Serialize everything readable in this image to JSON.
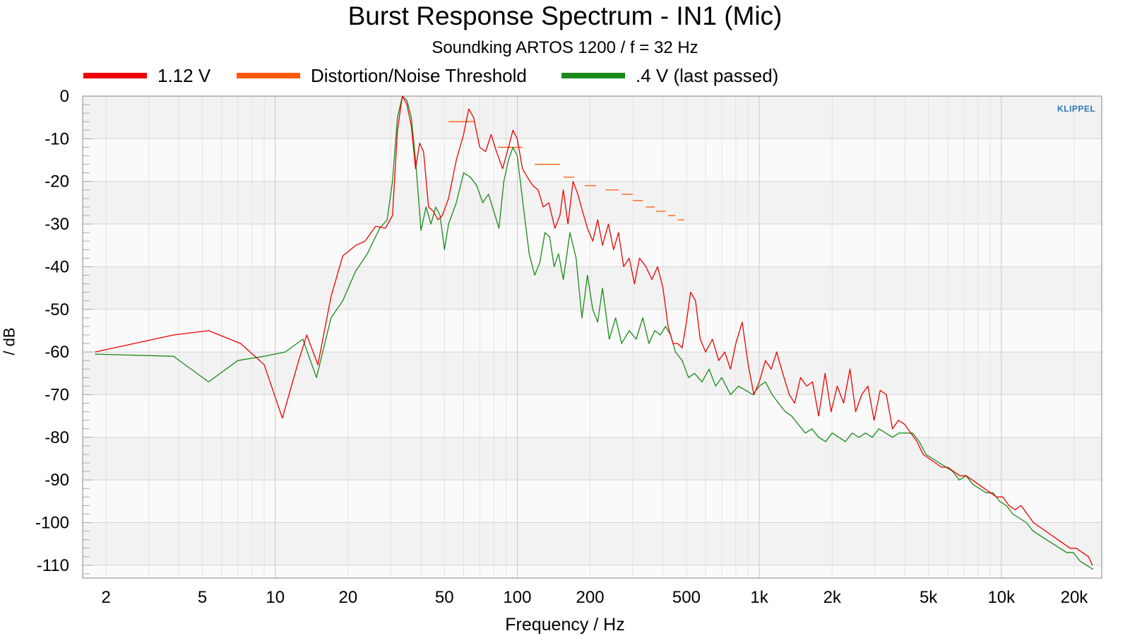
{
  "chart_data": {
    "type": "line",
    "title": "Burst Response Spectrum - IN1 (Mic)",
    "subtitle": "Soundking ARTOS 1200 / f = 32 Hz",
    "xlabel": "Frequency / Hz",
    "ylabel": "/ dB",
    "xscale": "log",
    "xlim": [
      1.6,
      26000
    ],
    "ylim": [
      -113,
      0
    ],
    "grid": true,
    "legend_position": "top",
    "x_ticks": [
      2,
      5,
      10,
      20,
      50,
      100,
      200,
      500,
      1000,
      2000,
      5000,
      10000,
      20000
    ],
    "x_tick_labels": [
      "2",
      "5",
      "10",
      "20",
      "50",
      "100",
      "200",
      "500",
      "1k",
      "2k",
      "5k",
      "10k",
      "20k"
    ],
    "y_ticks": [
      0,
      -10,
      -20,
      -30,
      -40,
      -50,
      -60,
      -70,
      -80,
      -90,
      -100,
      -110
    ],
    "y_tick_labels": [
      "0",
      "-10",
      "-20",
      "-30",
      "-40",
      "-50",
      "-60",
      "-70",
      "-80",
      "-90",
      "-100",
      "-110"
    ],
    "series": [
      {
        "name": "1.12 V",
        "color": "#ee0000",
        "points": [
          [
            1.8,
            -60
          ],
          [
            3.8,
            -56
          ],
          [
            5.3,
            -55
          ],
          [
            7.2,
            -58
          ],
          [
            9,
            -63
          ],
          [
            10.7,
            -75.5
          ],
          [
            12.5,
            -62
          ],
          [
            13.5,
            -56
          ],
          [
            15,
            -63
          ],
          [
            17,
            -47
          ],
          [
            19,
            -37.5
          ],
          [
            21.5,
            -35
          ],
          [
            23.5,
            -34
          ],
          [
            26,
            -30.5
          ],
          [
            28.5,
            -31
          ],
          [
            30.5,
            -28
          ],
          [
            32,
            -8
          ],
          [
            33.5,
            0
          ],
          [
            35,
            -2
          ],
          [
            36.5,
            -7
          ],
          [
            38,
            -17
          ],
          [
            39.5,
            -11
          ],
          [
            41,
            -13
          ],
          [
            43,
            -26
          ],
          [
            45,
            -27
          ],
          [
            47,
            -29
          ],
          [
            49,
            -28
          ],
          [
            52,
            -24
          ],
          [
            56,
            -15
          ],
          [
            60,
            -9
          ],
          [
            63,
            -3
          ],
          [
            66,
            -5
          ],
          [
            70,
            -12
          ],
          [
            74,
            -13
          ],
          [
            78,
            -9
          ],
          [
            82,
            -13
          ],
          [
            87,
            -17
          ],
          [
            92,
            -12
          ],
          [
            96,
            -8
          ],
          [
            100,
            -10
          ],
          [
            105,
            -17
          ],
          [
            110,
            -19
          ],
          [
            116,
            -21
          ],
          [
            122,
            -22
          ],
          [
            128,
            -26
          ],
          [
            135,
            -25
          ],
          [
            143,
            -31
          ],
          [
            150,
            -28
          ],
          [
            155,
            -22
          ],
          [
            162,
            -30
          ],
          [
            170,
            -20
          ],
          [
            178,
            -23
          ],
          [
            186,
            -27
          ],
          [
            195,
            -31
          ],
          [
            205,
            -34
          ],
          [
            215,
            -29
          ],
          [
            225,
            -35
          ],
          [
            238,
            -30
          ],
          [
            250,
            -36
          ],
          [
            262,
            -32
          ],
          [
            275,
            -40
          ],
          [
            290,
            -38
          ],
          [
            305,
            -44
          ],
          [
            320,
            -38
          ],
          [
            340,
            -40
          ],
          [
            360,
            -43
          ],
          [
            380,
            -40
          ],
          [
            400,
            -45
          ],
          [
            420,
            -54
          ],
          [
            440,
            -58
          ],
          [
            460,
            -58
          ],
          [
            480,
            -59
          ],
          [
            500,
            -53
          ],
          [
            520,
            -46
          ],
          [
            545,
            -48
          ],
          [
            570,
            -57
          ],
          [
            600,
            -60
          ],
          [
            640,
            -57
          ],
          [
            680,
            -62
          ],
          [
            720,
            -60
          ],
          [
            760,
            -64
          ],
          [
            800,
            -58
          ],
          [
            850,
            -53
          ],
          [
            900,
            -63
          ],
          [
            950,
            -70
          ],
          [
            1000,
            -67
          ],
          [
            1060,
            -62
          ],
          [
            1120,
            -64
          ],
          [
            1180,
            -60
          ],
          [
            1250,
            -65
          ],
          [
            1330,
            -70
          ],
          [
            1400,
            -72
          ],
          [
            1480,
            -66
          ],
          [
            1570,
            -68
          ],
          [
            1660,
            -67
          ],
          [
            1760,
            -75
          ],
          [
            1870,
            -65
          ],
          [
            1980,
            -74
          ],
          [
            2100,
            -68
          ],
          [
            2230,
            -72
          ],
          [
            2370,
            -64
          ],
          [
            2500,
            -74
          ],
          [
            2650,
            -70
          ],
          [
            2810,
            -68
          ],
          [
            2980,
            -76
          ],
          [
            3160,
            -69
          ],
          [
            3350,
            -70
          ],
          [
            3550,
            -78
          ],
          [
            3760,
            -76
          ],
          [
            3990,
            -77
          ],
          [
            4230,
            -79
          ],
          [
            4480,
            -81
          ],
          [
            4750,
            -84
          ],
          [
            5040,
            -85
          ],
          [
            5340,
            -86
          ],
          [
            5660,
            -87
          ],
          [
            6000,
            -87
          ],
          [
            6360,
            -88
          ],
          [
            6740,
            -89
          ],
          [
            7150,
            -89
          ],
          [
            7580,
            -90
          ],
          [
            8030,
            -91
          ],
          [
            8510,
            -92
          ],
          [
            9020,
            -93
          ],
          [
            9560,
            -94
          ],
          [
            10140,
            -94
          ],
          [
            10750,
            -96
          ],
          [
            11390,
            -97
          ],
          [
            12070,
            -96
          ],
          [
            12800,
            -98
          ],
          [
            13570,
            -100
          ],
          [
            14380,
            -101
          ],
          [
            15240,
            -102
          ],
          [
            16160,
            -103
          ],
          [
            17130,
            -104
          ],
          [
            18150,
            -105
          ],
          [
            19240,
            -106
          ],
          [
            20400,
            -106
          ],
          [
            21600,
            -107
          ],
          [
            22900,
            -108
          ],
          [
            23800,
            -110
          ]
        ]
      },
      {
        "name": "Distortion/Noise Threshold",
        "color": "#ff5a0a",
        "segments": [
          {
            "x": [
              52,
              66
            ],
            "y": -6
          },
          {
            "x": [
              83,
              105
            ],
            "y": -12
          },
          {
            "x": [
              118,
              150
            ],
            "y": -16
          },
          {
            "x": [
              155,
              172
            ],
            "y": -19
          },
          {
            "x": [
              190,
              212
            ],
            "y": -21
          },
          {
            "x": [
              232,
              262
            ],
            "y": -22
          },
          {
            "x": [
              270,
              300
            ],
            "y": -23
          },
          {
            "x": [
              300,
              330
            ],
            "y": -24.5
          },
          {
            "x": [
              340,
              370
            ],
            "y": -26
          },
          {
            "x": [
              375,
              410
            ],
            "y": -27
          },
          {
            "x": [
              420,
              450
            ],
            "y": -28
          },
          {
            "x": [
              460,
              490
            ],
            "y": -29
          }
        ]
      },
      {
        "name": ".4 V (last passed)",
        "color": "#1a8a1a",
        "points": [
          [
            1.8,
            -60.5
          ],
          [
            3.8,
            -61
          ],
          [
            5.3,
            -67
          ],
          [
            7,
            -62
          ],
          [
            9,
            -61
          ],
          [
            11,
            -60
          ],
          [
            13,
            -57
          ],
          [
            14.8,
            -66
          ],
          [
            17,
            -52
          ],
          [
            19,
            -48
          ],
          [
            21.5,
            -41
          ],
          [
            24,
            -37
          ],
          [
            27,
            -31
          ],
          [
            29,
            -29
          ],
          [
            30.5,
            -20
          ],
          [
            32,
            -5
          ],
          [
            33.5,
            0
          ],
          [
            35,
            -1
          ],
          [
            36.5,
            -5
          ],
          [
            38,
            -15
          ],
          [
            40,
            -31.5
          ],
          [
            42,
            -26
          ],
          [
            44,
            -30
          ],
          [
            46,
            -26
          ],
          [
            48,
            -28
          ],
          [
            50,
            -36
          ],
          [
            52,
            -30
          ],
          [
            56,
            -25
          ],
          [
            60,
            -18
          ],
          [
            64,
            -19
          ],
          [
            68,
            -21
          ],
          [
            72,
            -25
          ],
          [
            76,
            -23
          ],
          [
            80,
            -27
          ],
          [
            84,
            -31
          ],
          [
            88,
            -20
          ],
          [
            92,
            -15
          ],
          [
            96,
            -12
          ],
          [
            100,
            -14
          ],
          [
            106,
            -26
          ],
          [
            112,
            -37
          ],
          [
            118,
            -42
          ],
          [
            124,
            -39
          ],
          [
            130,
            -32
          ],
          [
            136,
            -33
          ],
          [
            142,
            -40
          ],
          [
            148,
            -37
          ],
          [
            155,
            -43
          ],
          [
            165,
            -32
          ],
          [
            175,
            -38
          ],
          [
            185,
            -52
          ],
          [
            195,
            -42
          ],
          [
            205,
            -50
          ],
          [
            215,
            -53
          ],
          [
            225,
            -45
          ],
          [
            240,
            -57
          ],
          [
            255,
            -52
          ],
          [
            270,
            -58
          ],
          [
            290,
            -55
          ],
          [
            310,
            -57
          ],
          [
            330,
            -52
          ],
          [
            350,
            -58
          ],
          [
            370,
            -55
          ],
          [
            390,
            -56
          ],
          [
            410,
            -54
          ],
          [
            430,
            -56
          ],
          [
            450,
            -60
          ],
          [
            480,
            -62
          ],
          [
            510,
            -66
          ],
          [
            540,
            -65
          ],
          [
            580,
            -67
          ],
          [
            620,
            -64
          ],
          [
            660,
            -68
          ],
          [
            700,
            -66
          ],
          [
            760,
            -70
          ],
          [
            820,
            -68
          ],
          [
            880,
            -69
          ],
          [
            940,
            -70
          ],
          [
            1000,
            -68
          ],
          [
            1060,
            -67
          ],
          [
            1130,
            -70
          ],
          [
            1200,
            -72
          ],
          [
            1280,
            -74
          ],
          [
            1360,
            -75
          ],
          [
            1450,
            -77
          ],
          [
            1550,
            -79
          ],
          [
            1650,
            -78
          ],
          [
            1760,
            -80
          ],
          [
            1880,
            -81
          ],
          [
            2000,
            -79
          ],
          [
            2130,
            -80
          ],
          [
            2270,
            -81
          ],
          [
            2420,
            -79
          ],
          [
            2580,
            -80
          ],
          [
            2750,
            -79
          ],
          [
            2930,
            -80
          ],
          [
            3120,
            -78
          ],
          [
            3330,
            -79
          ],
          [
            3550,
            -80
          ],
          [
            3780,
            -79
          ],
          [
            4030,
            -79
          ],
          [
            4300,
            -79
          ],
          [
            4580,
            -81
          ],
          [
            4880,
            -84
          ],
          [
            5200,
            -85
          ],
          [
            5540,
            -86
          ],
          [
            5910,
            -87
          ],
          [
            6300,
            -88
          ],
          [
            6710,
            -90
          ],
          [
            7150,
            -89
          ],
          [
            7620,
            -91
          ],
          [
            8120,
            -92
          ],
          [
            8660,
            -93
          ],
          [
            9230,
            -93
          ],
          [
            9840,
            -95
          ],
          [
            10480,
            -96
          ],
          [
            11170,
            -98
          ],
          [
            11910,
            -99
          ],
          [
            12690,
            -100
          ],
          [
            13530,
            -102
          ],
          [
            14420,
            -103
          ],
          [
            15360,
            -104
          ],
          [
            16380,
            -105
          ],
          [
            17450,
            -106
          ],
          [
            18600,
            -107
          ],
          [
            19830,
            -107
          ],
          [
            21130,
            -109
          ],
          [
            22520,
            -110
          ],
          [
            24000,
            -111
          ]
        ]
      }
    ],
    "watermark": "KLIPPEL"
  }
}
